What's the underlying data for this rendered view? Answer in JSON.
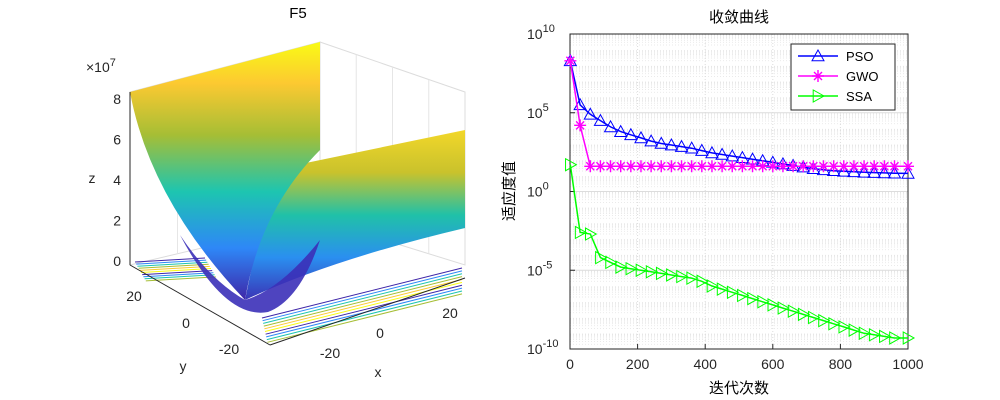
{
  "chart_data": [
    {
      "type": "surface",
      "title": "F5",
      "xlabel": "x",
      "ylabel": "y",
      "zlabel": "z",
      "z_multiplier": "×10",
      "z_exponent": "7",
      "x_ticks": [
        "-20",
        "0",
        "20"
      ],
      "y_ticks": [
        "-20",
        "0",
        "20"
      ],
      "z_ticks": [
        "0",
        "2",
        "4",
        "6",
        "8"
      ],
      "xlim": [
        -30,
        30
      ],
      "ylim": [
        -30,
        30
      ],
      "zlim": [
        0,
        90000000.0
      ],
      "colormap": [
        "#3e26a8",
        "#2e87f7",
        "#1dc5b0",
        "#a6be35",
        "#fcc931",
        "#f9fb15"
      ],
      "surface_z_max": 80000000.0
    },
    {
      "type": "line",
      "title": "收敛曲线",
      "xlabel": "迭代次数",
      "ylabel": "适应度值",
      "yscale": "log",
      "xlim": [
        0,
        1000
      ],
      "ylim": [
        1e-10,
        10000000000.0
      ],
      "x_ticks": [
        "0",
        "200",
        "400",
        "600",
        "800",
        "1000"
      ],
      "y_tick_bases": [
        "10",
        "10",
        "10",
        "10",
        "10"
      ],
      "y_tick_exponents": [
        "10",
        "5",
        "0",
        "-5",
        "-10"
      ],
      "legend_position": "top-right",
      "series": [
        {
          "name": "PSO",
          "color": "#0000ff",
          "marker": "triangle-up",
          "x": [
            1,
            30,
            60,
            90,
            120,
            150,
            180,
            210,
            240,
            270,
            300,
            330,
            360,
            390,
            420,
            450,
            480,
            510,
            540,
            570,
            600,
            630,
            660,
            690,
            720,
            750,
            780,
            810,
            840,
            870,
            900,
            930,
            960,
            1000
          ],
          "log10y": [
            8.3,
            5.5,
            4.9,
            4.5,
            4.1,
            3.8,
            3.6,
            3.4,
            3.2,
            3.05,
            2.95,
            2.85,
            2.75,
            2.6,
            2.45,
            2.35,
            2.25,
            2.15,
            2.05,
            1.95,
            1.85,
            1.75,
            1.65,
            1.55,
            1.45,
            1.38,
            1.32,
            1.28,
            1.25,
            1.22,
            1.2,
            1.18,
            1.16,
            1.15
          ]
        },
        {
          "name": "GWO",
          "color": "#ff00ff",
          "marker": "asterisk",
          "x": [
            1,
            30,
            60,
            90,
            120,
            150,
            180,
            210,
            240,
            270,
            300,
            330,
            360,
            390,
            420,
            450,
            480,
            510,
            540,
            570,
            600,
            630,
            660,
            690,
            720,
            750,
            780,
            810,
            840,
            870,
            900,
            930,
            960,
            1000
          ],
          "log10y": [
            8.3,
            4.2,
            1.6,
            1.6,
            1.6,
            1.6,
            1.6,
            1.6,
            1.6,
            1.6,
            1.6,
            1.6,
            1.6,
            1.6,
            1.6,
            1.6,
            1.6,
            1.6,
            1.6,
            1.6,
            1.6,
            1.6,
            1.6,
            1.6,
            1.6,
            1.6,
            1.6,
            1.6,
            1.6,
            1.6,
            1.6,
            1.6,
            1.6,
            1.6
          ]
        },
        {
          "name": "SSA",
          "color": "#00ff00",
          "marker": "triangle-right",
          "x": [
            1,
            30,
            60,
            90,
            120,
            150,
            180,
            210,
            240,
            270,
            300,
            330,
            360,
            390,
            420,
            450,
            480,
            510,
            540,
            570,
            600,
            630,
            660,
            690,
            720,
            750,
            780,
            810,
            840,
            870,
            900,
            930,
            960,
            1000
          ],
          "log10y": [
            1.7,
            -2.6,
            -2.7,
            -4.2,
            -4.5,
            -4.8,
            -4.9,
            -5.0,
            -5.1,
            -5.2,
            -5.3,
            -5.4,
            -5.5,
            -5.7,
            -6.0,
            -6.2,
            -6.4,
            -6.6,
            -6.8,
            -7.0,
            -7.2,
            -7.4,
            -7.6,
            -7.8,
            -8.0,
            -8.2,
            -8.4,
            -8.6,
            -8.8,
            -9.0,
            -9.1,
            -9.2,
            -9.3,
            -9.3
          ]
        }
      ]
    }
  ]
}
